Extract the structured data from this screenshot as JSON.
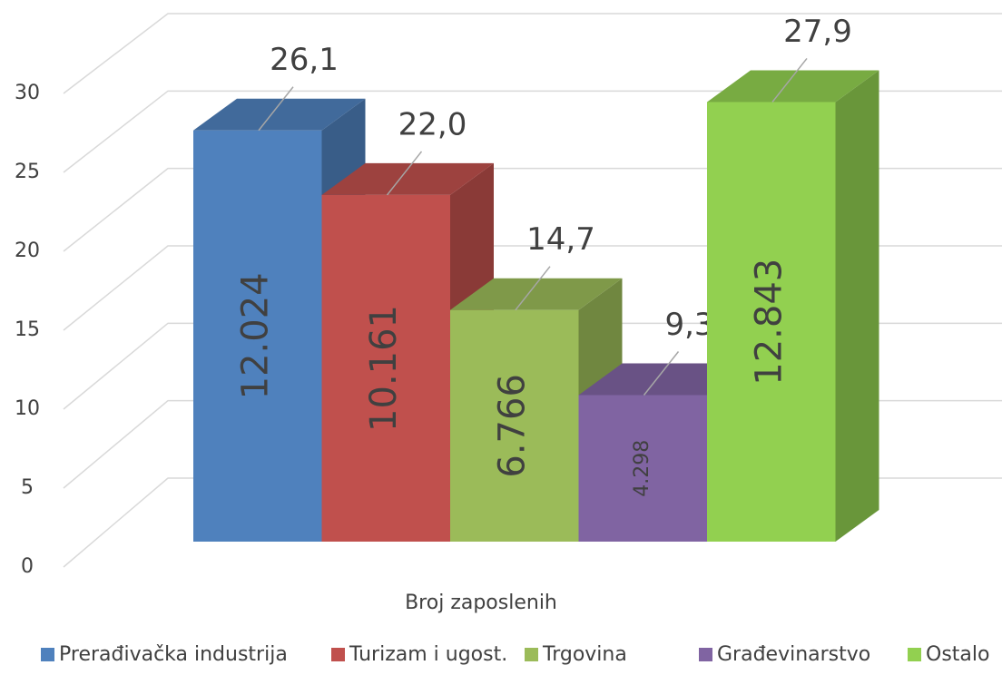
{
  "chart_data": {
    "type": "bar3d",
    "categories": [
      "Broj zaposlenih"
    ],
    "ylim": [
      0,
      30
    ],
    "yticks": [
      0,
      5,
      10,
      15,
      20,
      25,
      30
    ],
    "grid": true,
    "legend": "bottom",
    "series": [
      {
        "name": "Prerađivačka industrija",
        "color": "#4f81bd",
        "values": [
          26.1
        ],
        "value_labels": [
          "26,1"
        ],
        "counts": [
          12024
        ],
        "count_labels": [
          "12.024"
        ]
      },
      {
        "name": "Turizam i ugost.",
        "color": "#c0504d",
        "values": [
          22.0
        ],
        "value_labels": [
          "22,0"
        ],
        "counts": [
          10161
        ],
        "count_labels": [
          "10.161"
        ]
      },
      {
        "name": "Trgovina",
        "color": "#9bbb59",
        "values": [
          14.7
        ],
        "value_labels": [
          "14,7"
        ],
        "counts": [
          6766
        ],
        "count_labels": [
          "6.766"
        ]
      },
      {
        "name": "Građevinarstvo",
        "color": "#8064a2",
        "values": [
          9.3
        ],
        "value_labels": [
          "9,3"
        ],
        "counts": [
          4298
        ],
        "count_labels": [
          "4.298"
        ]
      },
      {
        "name": "Ostalo",
        "color": "#92d050",
        "values": [
          27.9
        ],
        "value_labels": [
          "27,9"
        ],
        "counts": [
          12843
        ],
        "count_labels": [
          "12.843"
        ]
      }
    ]
  }
}
